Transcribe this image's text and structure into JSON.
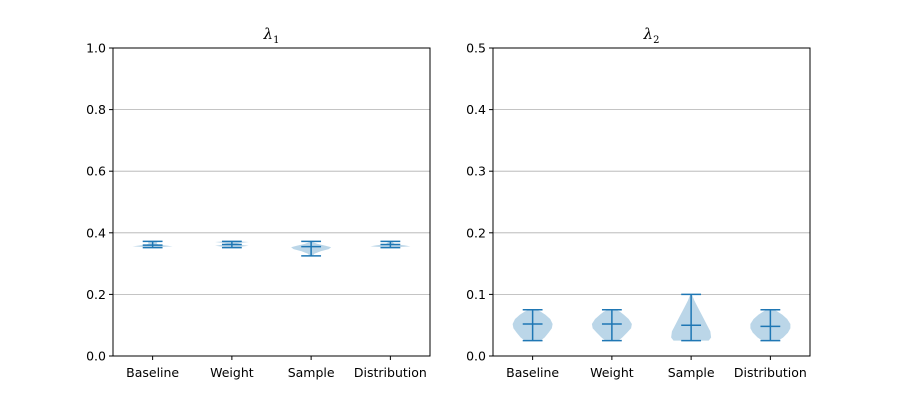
{
  "chart_data": [
    {
      "type": "violin",
      "title": "λ",
      "title_subscript": "1",
      "categories": [
        "Baseline",
        "Weight",
        "Sample",
        "Distribution"
      ],
      "ylim": [
        0,
        1.0
      ],
      "yticks": [
        0.0,
        0.2,
        0.4,
        0.6,
        0.8,
        1.0
      ],
      "ytick_labels": [
        "0.0",
        "0.2",
        "0.4",
        "0.6",
        "0.8",
        "1.0"
      ],
      "grid": "y",
      "color": "#1f77b4",
      "fill_color": "#1f77b4",
      "series": [
        {
          "category": "Baseline",
          "min": 0.352,
          "median": 0.36,
          "max": 0.372,
          "density": [
            [
              0.352,
              0.03
            ],
            [
              0.354,
              0.1
            ],
            [
              0.356,
              0.25
            ],
            [
              0.358,
              0.19
            ],
            [
              0.361,
              0.08
            ],
            [
              0.365,
              0.05
            ],
            [
              0.369,
              0.06
            ],
            [
              0.372,
              0.02
            ]
          ]
        },
        {
          "category": "Weight",
          "min": 0.352,
          "median": 0.362,
          "max": 0.372,
          "density": [
            [
              0.352,
              0.05
            ],
            [
              0.355,
              0.12
            ],
            [
              0.358,
              0.21
            ],
            [
              0.361,
              0.1
            ],
            [
              0.364,
              0.06
            ],
            [
              0.367,
              0.1
            ],
            [
              0.37,
              0.21
            ],
            [
              0.372,
              0.08
            ]
          ]
        },
        {
          "category": "Sample",
          "min": 0.325,
          "median": 0.355,
          "max": 0.372,
          "density": [
            [
              0.325,
              0.02
            ],
            [
              0.332,
              0.04
            ],
            [
              0.34,
              0.12
            ],
            [
              0.347,
              0.22
            ],
            [
              0.353,
              0.25
            ],
            [
              0.358,
              0.18
            ],
            [
              0.364,
              0.08
            ],
            [
              0.369,
              0.03
            ],
            [
              0.372,
              0.01
            ]
          ]
        },
        {
          "category": "Distribution",
          "min": 0.352,
          "median": 0.362,
          "max": 0.372,
          "density": [
            [
              0.352,
              0.04
            ],
            [
              0.354,
              0.12
            ],
            [
              0.356,
              0.25
            ],
            [
              0.359,
              0.18
            ],
            [
              0.363,
              0.06
            ],
            [
              0.367,
              0.04
            ],
            [
              0.37,
              0.03
            ],
            [
              0.372,
              0.01
            ]
          ]
        }
      ]
    },
    {
      "type": "violin",
      "title": "λ",
      "title_subscript": "2",
      "categories": [
        "Baseline",
        "Weight",
        "Sample",
        "Distribution"
      ],
      "ylim": [
        0,
        0.5
      ],
      "yticks": [
        0.0,
        0.1,
        0.2,
        0.3,
        0.4,
        0.5
      ],
      "ytick_labels": [
        "0.0",
        "0.1",
        "0.2",
        "0.3",
        "0.4",
        "0.5"
      ],
      "grid": "y",
      "color": "#1f77b4",
      "fill_color": "#1f77b4",
      "series": [
        {
          "category": "Baseline",
          "min": 0.025,
          "median": 0.052,
          "max": 0.075,
          "density": [
            [
              0.025,
              0.1
            ],
            [
              0.03,
              0.15
            ],
            [
              0.038,
              0.2
            ],
            [
              0.045,
              0.24
            ],
            [
              0.052,
              0.25
            ],
            [
              0.06,
              0.22
            ],
            [
              0.067,
              0.16
            ],
            [
              0.072,
              0.1
            ],
            [
              0.075,
              0.05
            ]
          ]
        },
        {
          "category": "Weight",
          "min": 0.025,
          "median": 0.052,
          "max": 0.075,
          "density": [
            [
              0.025,
              0.08
            ],
            [
              0.03,
              0.13
            ],
            [
              0.038,
              0.19
            ],
            [
              0.045,
              0.24
            ],
            [
              0.052,
              0.25
            ],
            [
              0.06,
              0.21
            ],
            [
              0.067,
              0.15
            ],
            [
              0.072,
              0.1
            ],
            [
              0.075,
              0.05
            ]
          ]
        },
        {
          "category": "Sample",
          "min": 0.025,
          "median": 0.05,
          "max": 0.1,
          "density": [
            [
              0.025,
              0.22
            ],
            [
              0.03,
              0.25
            ],
            [
              0.04,
              0.24
            ],
            [
              0.05,
              0.2
            ],
            [
              0.06,
              0.16
            ],
            [
              0.07,
              0.12
            ],
            [
              0.08,
              0.08
            ],
            [
              0.09,
              0.04
            ],
            [
              0.1,
              0.01
            ]
          ]
        },
        {
          "category": "Distribution",
          "min": 0.025,
          "median": 0.048,
          "max": 0.075,
          "density": [
            [
              0.025,
              0.1
            ],
            [
              0.03,
              0.16
            ],
            [
              0.038,
              0.22
            ],
            [
              0.045,
              0.25
            ],
            [
              0.052,
              0.25
            ],
            [
              0.06,
              0.21
            ],
            [
              0.067,
              0.15
            ],
            [
              0.072,
              0.09
            ],
            [
              0.075,
              0.05
            ]
          ]
        }
      ]
    }
  ]
}
